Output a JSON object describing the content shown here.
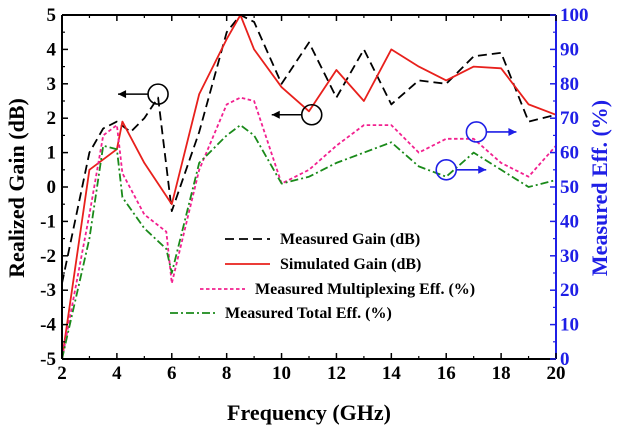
{
  "chart_data": {
    "type": "line",
    "xlabel": "Frequency (GHz)",
    "ylabel_left": "Realized Gain (dB)",
    "ylabel_right": "Measured Eff. (%)",
    "xlim": [
      2,
      20
    ],
    "ylim_left": [
      -5,
      5
    ],
    "ylim_right": [
      0,
      100
    ],
    "x_ticks": [
      2,
      4,
      6,
      8,
      10,
      12,
      14,
      16,
      18,
      20
    ],
    "y_ticks_left": [
      -5,
      -4,
      -3,
      -2,
      -1,
      0,
      1,
      2,
      3,
      4,
      5
    ],
    "y_ticks_right": [
      0,
      10,
      20,
      30,
      40,
      50,
      60,
      70,
      80,
      90,
      100
    ],
    "colors": {
      "left_axis": "#000000",
      "right_axis": "#1f1fe6"
    },
    "grid": false,
    "legend_position": "lower-center",
    "series": [
      {
        "name": "Measured Gain (dB)",
        "axis": "left",
        "color": "#000000",
        "style": "dashed",
        "x": [
          2,
          3,
          3.5,
          4,
          4.5,
          5,
          5.5,
          6,
          7,
          8,
          8.5,
          9,
          10,
          11,
          12,
          13,
          14,
          15,
          16,
          17,
          18,
          19,
          20
        ],
        "y": [
          -2.8,
          1.0,
          1.7,
          1.9,
          1.6,
          2.0,
          2.6,
          -0.7,
          1.6,
          4.5,
          5.0,
          4.8,
          3.0,
          4.2,
          2.6,
          4.0,
          2.4,
          3.1,
          3.0,
          3.8,
          3.9,
          1.9,
          2.1
        ]
      },
      {
        "name": "Simulated Gain (dB)",
        "axis": "left",
        "color": "#e8201c",
        "style": "solid",
        "x": [
          2,
          3,
          4,
          4.2,
          5,
          6,
          7,
          8,
          8.5,
          9,
          10,
          11,
          12,
          13,
          14,
          15,
          16,
          17,
          18,
          19,
          20
        ],
        "y": [
          -5,
          0.5,
          1.1,
          1.9,
          0.7,
          -0.5,
          2.7,
          4.3,
          5.0,
          4.0,
          2.9,
          2.2,
          3.4,
          2.5,
          4.0,
          3.5,
          3.1,
          3.5,
          3.45,
          2.4,
          2.1
        ]
      },
      {
        "name": "Measured Multiplexing Eff. (%)",
        "axis": "right",
        "color": "#f2208f",
        "style": "dotted",
        "x": [
          2,
          3,
          3.5,
          4,
          4.2,
          5,
          5.8,
          6,
          7,
          8,
          8.5,
          9,
          10,
          11,
          12,
          13,
          14,
          15,
          16,
          17,
          18,
          19,
          20
        ],
        "y": [
          0,
          42,
          65,
          68,
          54,
          42,
          37,
          22,
          55,
          74,
          76,
          75,
          51,
          55,
          62,
          68,
          68,
          60,
          64,
          64,
          57,
          53,
          62
        ]
      },
      {
        "name": "Measured Total Eff. (%)",
        "axis": "right",
        "color": "#1a8a1a",
        "style": "dashdot",
        "x": [
          2,
          3,
          3.5,
          4,
          4.2,
          5,
          5.8,
          6,
          7,
          8,
          8.5,
          9,
          10,
          11,
          12,
          13,
          14,
          15,
          16,
          17,
          18,
          19,
          20
        ],
        "y": [
          0,
          35,
          62,
          61,
          47,
          38,
          32,
          25,
          57,
          65,
          68,
          65,
          51,
          53,
          57,
          60,
          63,
          56,
          53,
          60,
          55,
          50,
          52
        ]
      }
    ],
    "annotations": [
      {
        "type": "circle-arrow",
        "x": 5.5,
        "y": 2.7,
        "axis": "left",
        "direction": "left",
        "color": "#000000"
      },
      {
        "type": "circle-arrow",
        "x": 11.1,
        "y": 2.1,
        "axis": "left",
        "direction": "left",
        "color": "#000000"
      },
      {
        "type": "circle-arrow",
        "x": 17.1,
        "y": 66,
        "axis": "right",
        "direction": "right",
        "color": "#1f1fe6"
      },
      {
        "type": "circle-arrow",
        "x": 16.0,
        "y": 55,
        "axis": "right",
        "direction": "right",
        "color": "#1f1fe6"
      }
    ]
  }
}
